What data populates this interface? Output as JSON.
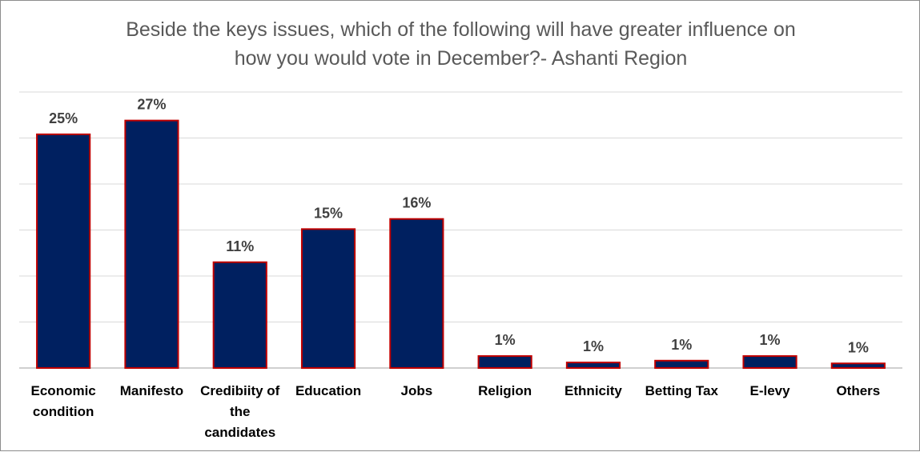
{
  "chart_data": {
    "type": "bar",
    "title": "Beside the keys issues, which of the following will have greater influence on how you would vote in December?- Ashanti Region",
    "title_lines": [
      "Beside the keys issues, which of the following will have greater influence on",
      "how you would vote in December?- Ashanti Region"
    ],
    "categories": [
      "Economic condition",
      "Manifesto",
      "Credibiity of the candidates",
      "Education",
      "Jobs",
      "Religion",
      "Ethnicity",
      "Betting Tax",
      "E-levy",
      "Others"
    ],
    "category_lines": [
      [
        "Economic",
        "condition"
      ],
      [
        "Manifesto"
      ],
      [
        "Credibiity of",
        "the",
        "candidates"
      ],
      [
        "Education"
      ],
      [
        "Jobs"
      ],
      [
        "Religion"
      ],
      [
        "Ethnicity"
      ],
      [
        "Betting Tax"
      ],
      [
        "E-levy"
      ],
      [
        "Others"
      ]
    ],
    "values": [
      25.4,
      26.9,
      11.5,
      15.1,
      16.2,
      1.3,
      0.6,
      0.8,
      1.3,
      0.5
    ],
    "data_labels": [
      "25%",
      "27%",
      "11%",
      "15%",
      "16%",
      "1%",
      "1%",
      "1%",
      "1%",
      "1%"
    ],
    "ylim": [
      0,
      30
    ],
    "grid": true,
    "legend": "none",
    "xlabel": "",
    "ylabel": "",
    "colors": {
      "bar_fill": "#002060",
      "bar_edge": "#c00000",
      "grid": "#d9d9d9"
    }
  }
}
